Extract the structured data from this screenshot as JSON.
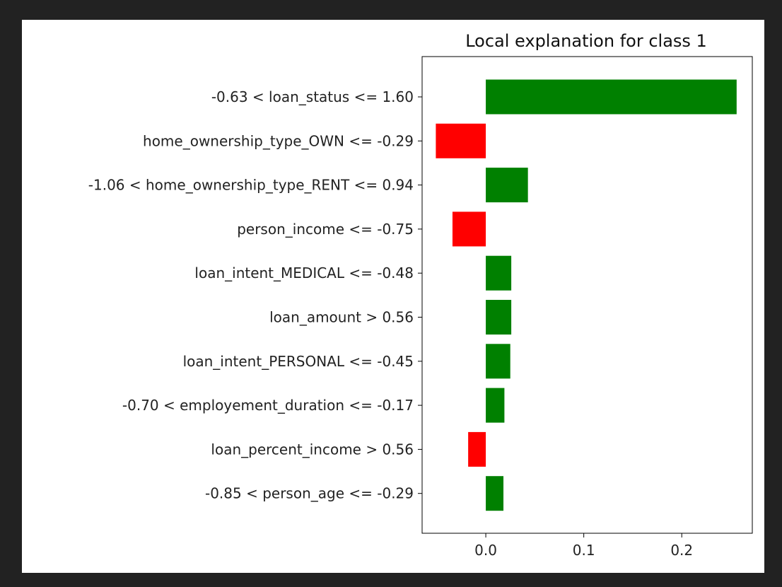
{
  "chart_data": {
    "type": "bar",
    "orientation": "horizontal",
    "title": "Local explanation for class 1",
    "xlabel": "",
    "ylabel": "",
    "xlim": [
      -0.065,
      0.272
    ],
    "xticks": [
      0.0,
      0.1,
      0.2
    ],
    "xtick_labels": [
      "0.0",
      "0.1",
      "0.2"
    ],
    "grid": false,
    "categories": [
      "-0.63 < loan_status <= 1.60",
      "home_ownership_type_OWN <= -0.29",
      "-1.06 < home_ownership_type_RENT <= 0.94",
      "person_income <= -0.75",
      "loan_intent_MEDICAL <= -0.48",
      "loan_amount > 0.56",
      "loan_intent_PERSONAL <= -0.45",
      "-0.70 < employement_duration <= -0.17",
      "loan_percent_income > 0.56",
      "-0.85 < person_age <= -0.29"
    ],
    "values": [
      0.256,
      -0.051,
      0.043,
      -0.034,
      0.026,
      0.026,
      0.025,
      0.019,
      -0.018,
      0.018
    ],
    "colors": {
      "positive": "#008000",
      "negative": "#ff0000"
    }
  }
}
